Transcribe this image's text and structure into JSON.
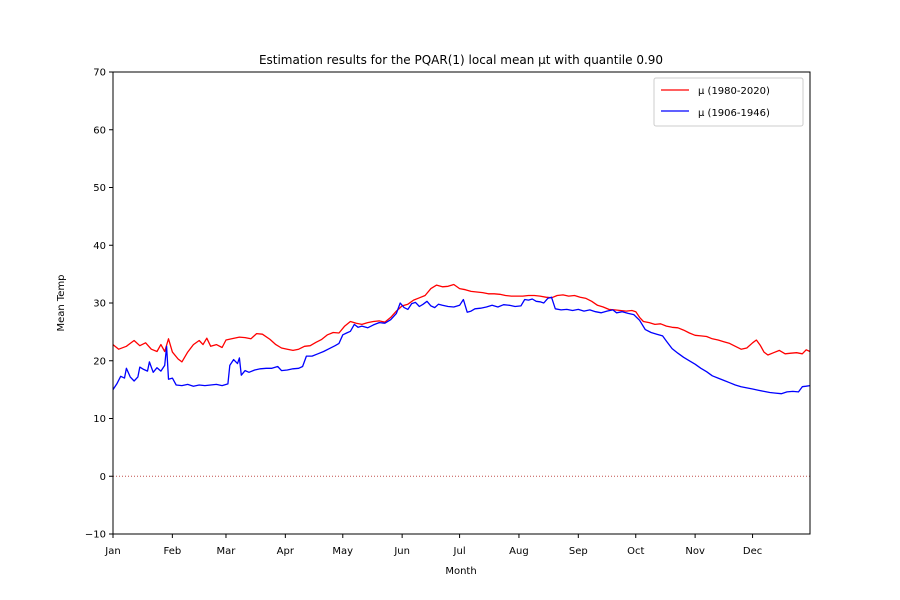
{
  "chart_data": {
    "type": "line",
    "title": "Estimation results for the PQAR(1) local mean μt with quantile 0.90",
    "xlabel": "Month",
    "ylabel": "Mean Temp",
    "xlim": [
      1,
      365
    ],
    "ylim": [
      -10,
      70
    ],
    "yticks": [
      -10,
      0,
      10,
      20,
      30,
      40,
      50,
      60,
      70
    ],
    "xticks": [
      {
        "day": 1,
        "label": "Jan"
      },
      {
        "day": 32,
        "label": "Feb"
      },
      {
        "day": 60,
        "label": "Mar"
      },
      {
        "day": 91,
        "label": "Apr"
      },
      {
        "day": 121,
        "label": "May"
      },
      {
        "day": 152,
        "label": "Jun"
      },
      {
        "day": 182,
        "label": "Jul"
      },
      {
        "day": 213,
        "label": "Aug"
      },
      {
        "day": 244,
        "label": "Sep"
      },
      {
        "day": 274,
        "label": "Oct"
      },
      {
        "day": 305,
        "label": "Nov"
      },
      {
        "day": 335,
        "label": "Dec"
      }
    ],
    "reference_line": {
      "y": 0,
      "color": "#c0504d",
      "style": "dotted"
    },
    "legend_position": "top-right",
    "series": [
      {
        "name": "μ (1980-2020)",
        "color": "#ff0000",
        "points": [
          [
            1,
            22.8
          ],
          [
            4,
            22.0
          ],
          [
            8,
            22.5
          ],
          [
            12,
            23.5
          ],
          [
            15,
            22.6
          ],
          [
            18,
            23.1
          ],
          [
            21,
            22.0
          ],
          [
            24,
            21.6
          ],
          [
            26,
            22.8
          ],
          [
            28,
            21.6
          ],
          [
            30,
            23.8
          ],
          [
            32,
            21.5
          ],
          [
            35,
            20.3
          ],
          [
            37,
            19.8
          ],
          [
            40,
            21.5
          ],
          [
            43,
            22.8
          ],
          [
            46,
            23.5
          ],
          [
            48,
            22.8
          ],
          [
            50,
            23.9
          ],
          [
            52,
            22.5
          ],
          [
            55,
            22.8
          ],
          [
            58,
            22.3
          ],
          [
            60,
            23.6
          ],
          [
            63,
            23.8
          ],
          [
            67,
            24.1
          ],
          [
            70,
            24.0
          ],
          [
            73,
            23.8
          ],
          [
            76,
            24.7
          ],
          [
            79,
            24.6
          ],
          [
            83,
            23.7
          ],
          [
            86,
            22.8
          ],
          [
            89,
            22.2
          ],
          [
            92,
            22.0
          ],
          [
            95,
            21.8
          ],
          [
            98,
            22.0
          ],
          [
            101,
            22.5
          ],
          [
            104,
            22.6
          ],
          [
            107,
            23.2
          ],
          [
            110,
            23.7
          ],
          [
            113,
            24.5
          ],
          [
            116,
            24.9
          ],
          [
            119,
            24.8
          ],
          [
            122,
            26.0
          ],
          [
            125,
            26.8
          ],
          [
            128,
            26.5
          ],
          [
            131,
            26.3
          ],
          [
            134,
            26.6
          ],
          [
            137,
            26.8
          ],
          [
            140,
            26.9
          ],
          [
            143,
            26.7
          ],
          [
            146,
            27.5
          ],
          [
            149,
            28.6
          ],
          [
            152,
            29.5
          ],
          [
            155,
            29.8
          ],
          [
            158,
            30.5
          ],
          [
            161,
            30.9
          ],
          [
            164,
            31.3
          ],
          [
            167,
            32.5
          ],
          [
            170,
            33.1
          ],
          [
            173,
            32.8
          ],
          [
            176,
            32.9
          ],
          [
            179,
            33.2
          ],
          [
            182,
            32.5
          ],
          [
            185,
            32.3
          ],
          [
            188,
            32.0
          ],
          [
            191,
            31.9
          ],
          [
            194,
            31.8
          ],
          [
            197,
            31.6
          ],
          [
            200,
            31.6
          ],
          [
            203,
            31.5
          ],
          [
            206,
            31.3
          ],
          [
            209,
            31.2
          ],
          [
            212,
            31.2
          ],
          [
            215,
            31.2
          ],
          [
            218,
            31.3
          ],
          [
            221,
            31.3
          ],
          [
            224,
            31.2
          ],
          [
            227,
            31.0
          ],
          [
            230,
            30.9
          ],
          [
            233,
            31.3
          ],
          [
            236,
            31.4
          ],
          [
            239,
            31.2
          ],
          [
            242,
            31.3
          ],
          [
            245,
            31.0
          ],
          [
            248,
            30.8
          ],
          [
            251,
            30.3
          ],
          [
            254,
            29.6
          ],
          [
            257,
            29.3
          ],
          [
            260,
            28.9
          ],
          [
            263,
            28.8
          ],
          [
            266,
            28.7
          ],
          [
            269,
            28.6
          ],
          [
            272,
            28.7
          ],
          [
            274,
            28.5
          ],
          [
            276,
            27.5
          ],
          [
            278,
            26.8
          ],
          [
            281,
            26.6
          ],
          [
            284,
            26.3
          ],
          [
            287,
            26.4
          ],
          [
            290,
            26.0
          ],
          [
            293,
            25.8
          ],
          [
            296,
            25.7
          ],
          [
            299,
            25.3
          ],
          [
            302,
            24.8
          ],
          [
            305,
            24.4
          ],
          [
            308,
            24.3
          ],
          [
            311,
            24.2
          ],
          [
            314,
            23.8
          ],
          [
            317,
            23.6
          ],
          [
            320,
            23.3
          ],
          [
            323,
            23.0
          ],
          [
            326,
            22.5
          ],
          [
            329,
            22.0
          ],
          [
            332,
            22.2
          ],
          [
            335,
            23.1
          ],
          [
            337,
            23.6
          ],
          [
            339,
            22.7
          ],
          [
            341,
            21.5
          ],
          [
            343,
            21.0
          ],
          [
            346,
            21.4
          ],
          [
            349,
            21.8
          ],
          [
            352,
            21.2
          ],
          [
            355,
            21.3
          ],
          [
            358,
            21.4
          ],
          [
            361,
            21.2
          ],
          [
            363,
            21.9
          ],
          [
            365,
            21.6
          ]
        ]
      },
      {
        "name": "μ (1906-1946)",
        "color": "#0000ff",
        "points": [
          [
            1,
            15.0
          ],
          [
            3,
            16.0
          ],
          [
            5,
            17.3
          ],
          [
            7,
            17.0
          ],
          [
            8,
            18.7
          ],
          [
            10,
            17.2
          ],
          [
            12,
            16.5
          ],
          [
            14,
            17.2
          ],
          [
            15,
            18.9
          ],
          [
            17,
            18.5
          ],
          [
            19,
            18.2
          ],
          [
            20,
            19.8
          ],
          [
            22,
            18.0
          ],
          [
            24,
            18.8
          ],
          [
            26,
            18.2
          ],
          [
            28,
            19.2
          ],
          [
            29,
            22.5
          ],
          [
            30,
            16.8
          ],
          [
            32,
            17.0
          ],
          [
            34,
            15.8
          ],
          [
            37,
            15.7
          ],
          [
            40,
            15.9
          ],
          [
            43,
            15.6
          ],
          [
            46,
            15.8
          ],
          [
            49,
            15.7
          ],
          [
            52,
            15.8
          ],
          [
            55,
            15.9
          ],
          [
            58,
            15.7
          ],
          [
            61,
            16.0
          ],
          [
            62,
            19.2
          ],
          [
            64,
            20.2
          ],
          [
            66,
            19.5
          ],
          [
            67,
            20.5
          ],
          [
            68,
            17.5
          ],
          [
            70,
            18.3
          ],
          [
            72,
            18.0
          ],
          [
            75,
            18.4
          ],
          [
            78,
            18.6
          ],
          [
            81,
            18.7
          ],
          [
            84,
            18.7
          ],
          [
            87,
            19.0
          ],
          [
            89,
            18.3
          ],
          [
            92,
            18.4
          ],
          [
            95,
            18.6
          ],
          [
            98,
            18.7
          ],
          [
            100,
            19.0
          ],
          [
            102,
            20.8
          ],
          [
            105,
            20.8
          ],
          [
            108,
            21.2
          ],
          [
            111,
            21.6
          ],
          [
            114,
            22.1
          ],
          [
            117,
            22.6
          ],
          [
            119,
            23.0
          ],
          [
            121,
            24.5
          ],
          [
            123,
            24.8
          ],
          [
            125,
            25.1
          ],
          [
            127,
            26.3
          ],
          [
            129,
            25.8
          ],
          [
            131,
            26.0
          ],
          [
            134,
            25.7
          ],
          [
            137,
            26.2
          ],
          [
            140,
            26.6
          ],
          [
            143,
            26.5
          ],
          [
            146,
            27.1
          ],
          [
            149,
            28.2
          ],
          [
            151,
            30.0
          ],
          [
            153,
            29.2
          ],
          [
            155,
            28.9
          ],
          [
            157,
            29.9
          ],
          [
            159,
            30.1
          ],
          [
            161,
            29.4
          ],
          [
            163,
            29.8
          ],
          [
            165,
            30.3
          ],
          [
            167,
            29.5
          ],
          [
            169,
            29.2
          ],
          [
            171,
            29.8
          ],
          [
            173,
            29.6
          ],
          [
            176,
            29.4
          ],
          [
            179,
            29.3
          ],
          [
            182,
            29.6
          ],
          [
            184,
            30.6
          ],
          [
            186,
            28.4
          ],
          [
            188,
            28.6
          ],
          [
            190,
            29.0
          ],
          [
            193,
            29.1
          ],
          [
            196,
            29.3
          ],
          [
            199,
            29.6
          ],
          [
            202,
            29.3
          ],
          [
            205,
            29.7
          ],
          [
            208,
            29.6
          ],
          [
            211,
            29.4
          ],
          [
            214,
            29.5
          ],
          [
            216,
            30.6
          ],
          [
            218,
            30.5
          ],
          [
            220,
            30.7
          ],
          [
            222,
            30.3
          ],
          [
            224,
            30.2
          ],
          [
            226,
            30.0
          ],
          [
            228,
            30.8
          ],
          [
            230,
            31.0
          ],
          [
            232,
            29.0
          ],
          [
            235,
            28.8
          ],
          [
            238,
            28.9
          ],
          [
            241,
            28.7
          ],
          [
            244,
            28.9
          ],
          [
            247,
            28.6
          ],
          [
            250,
            28.8
          ],
          [
            253,
            28.5
          ],
          [
            256,
            28.3
          ],
          [
            259,
            28.6
          ],
          [
            262,
            28.8
          ],
          [
            264,
            28.3
          ],
          [
            267,
            28.5
          ],
          [
            270,
            28.2
          ],
          [
            273,
            28.0
          ],
          [
            276,
            27.0
          ],
          [
            279,
            25.4
          ],
          [
            282,
            24.9
          ],
          [
            285,
            24.6
          ],
          [
            288,
            24.3
          ],
          [
            290,
            23.4
          ],
          [
            293,
            22.1
          ],
          [
            296,
            21.3
          ],
          [
            299,
            20.6
          ],
          [
            302,
            20.0
          ],
          [
            305,
            19.4
          ],
          [
            308,
            18.7
          ],
          [
            311,
            18.1
          ],
          [
            314,
            17.4
          ],
          [
            317,
            17.0
          ],
          [
            320,
            16.6
          ],
          [
            323,
            16.2
          ],
          [
            326,
            15.8
          ],
          [
            329,
            15.5
          ],
          [
            332,
            15.3
          ],
          [
            335,
            15.1
          ],
          [
            338,
            14.9
          ],
          [
            341,
            14.7
          ],
          [
            344,
            14.5
          ],
          [
            347,
            14.4
          ],
          [
            350,
            14.3
          ],
          [
            353,
            14.6
          ],
          [
            356,
            14.7
          ],
          [
            359,
            14.6
          ],
          [
            361,
            15.5
          ],
          [
            363,
            15.6
          ],
          [
            365,
            15.7
          ]
        ]
      }
    ]
  }
}
